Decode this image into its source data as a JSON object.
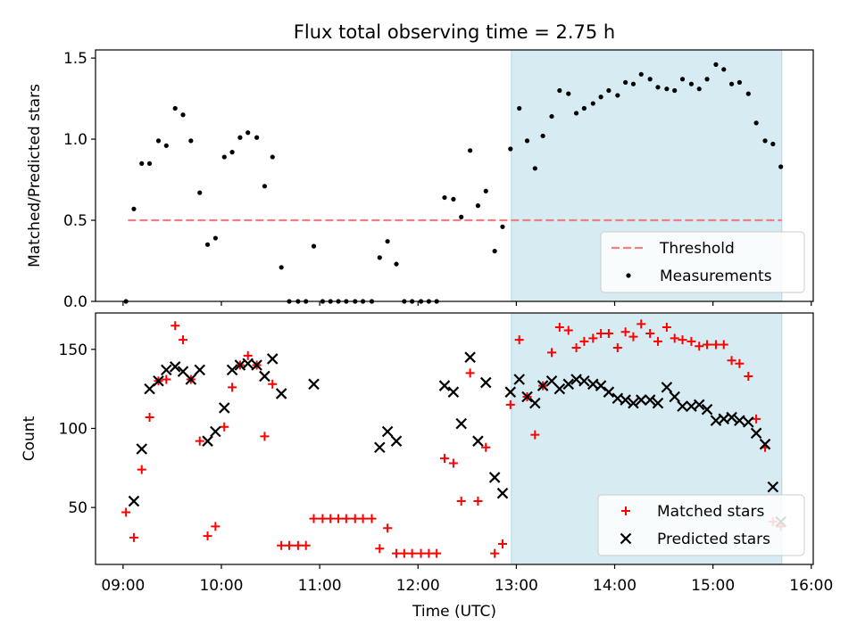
{
  "title": "Flux total observing time = 2.75 h",
  "colors": {
    "shade": "#add8e6",
    "threshold": "#f08080",
    "measurement": "#000000",
    "matched": "#ff0000",
    "predicted": "#000000"
  },
  "chart_data": [
    {
      "type": "scatter",
      "ylabel": "Matched/Predicted stars",
      "ylim": [
        0,
        1.55
      ],
      "xlim": [
        8.72,
        16.02
      ],
      "yticks": [
        {
          "v": 0,
          "label": "0.0"
        },
        {
          "v": 0.5,
          "label": "0.5"
        },
        {
          "v": 1.0,
          "label": "1.0"
        },
        {
          "v": 1.5,
          "label": "1.5"
        }
      ],
      "shaded_region": [
        12.95,
        15.7
      ],
      "threshold": {
        "value": 0.5,
        "x": [
          9.05,
          15.7
        ]
      },
      "legend": {
        "placement": "lower-right",
        "entries": [
          "Threshold",
          "Measurements"
        ]
      },
      "series": [
        {
          "name": "Measurements",
          "x": [
            9.03,
            9.11,
            9.19,
            9.27,
            9.36,
            9.44,
            9.53,
            9.61,
            9.69,
            9.78,
            9.86,
            9.94,
            10.03,
            10.11,
            10.19,
            10.27,
            10.36,
            10.44,
            10.52,
            10.61,
            10.69,
            10.78,
            10.86,
            10.94,
            11.03,
            11.11,
            11.19,
            11.27,
            11.36,
            11.44,
            11.53,
            11.61,
            11.69,
            11.78,
            11.86,
            11.94,
            12.03,
            12.11,
            12.19,
            12.27,
            12.36,
            12.44,
            12.53,
            12.61,
            12.69,
            12.78,
            12.86,
            12.94,
            13.03,
            13.11,
            13.19,
            13.27,
            13.36,
            13.44,
            13.53,
            13.61,
            13.69,
            13.78,
            13.86,
            13.94,
            14.03,
            14.11,
            14.19,
            14.27,
            14.36,
            14.44,
            14.53,
            14.61,
            14.69,
            14.78,
            14.86,
            14.94,
            15.03,
            15.11,
            15.19,
            15.27,
            15.36,
            15.44,
            15.53,
            15.61,
            15.69
          ],
          "y": [
            0.0,
            0.57,
            0.85,
            0.85,
            0.99,
            0.96,
            1.19,
            1.15,
            0.99,
            0.67,
            0.35,
            0.39,
            0.89,
            0.92,
            1.01,
            1.04,
            1.01,
            0.71,
            0.89,
            0.21,
            0.0,
            0.0,
            0.0,
            0.34,
            0.0,
            0.0,
            0.0,
            0.0,
            0.0,
            0.0,
            0.0,
            0.27,
            0.37,
            0.23,
            0.0,
            0.0,
            0.0,
            0.0,
            0.0,
            0.64,
            0.63,
            0.52,
            0.93,
            0.59,
            0.68,
            0.31,
            0.46,
            0.94,
            1.19,
            0.99,
            0.82,
            1.02,
            1.14,
            1.3,
            1.28,
            1.16,
            1.19,
            1.22,
            1.26,
            1.3,
            1.27,
            1.35,
            1.34,
            1.4,
            1.37,
            1.32,
            1.31,
            1.3,
            1.37,
            1.34,
            1.31,
            1.37,
            1.46,
            1.43,
            1.34,
            1.35,
            1.28,
            1.1,
            0.99,
            0.97,
            0.83
          ]
        }
      ]
    },
    {
      "type": "scatter",
      "xlabel": "Time (UTC)",
      "ylabel": "Count",
      "ylim": [
        14,
        173
      ],
      "xlim": [
        8.72,
        16.02
      ],
      "yticks": [
        {
          "v": 50,
          "label": "50"
        },
        {
          "v": 100,
          "label": "100"
        },
        {
          "v": 150,
          "label": "150"
        }
      ],
      "xticks": [
        {
          "v": 9,
          "label": "09:00"
        },
        {
          "v": 10,
          "label": "10:00"
        },
        {
          "v": 11,
          "label": "11:00"
        },
        {
          "v": 12,
          "label": "12:00"
        },
        {
          "v": 13,
          "label": "13:00"
        },
        {
          "v": 14,
          "label": "14:00"
        },
        {
          "v": 15,
          "label": "15:00"
        },
        {
          "v": 16,
          "label": "16:00"
        }
      ],
      "shaded_region": [
        12.95,
        15.7
      ],
      "legend": {
        "placement": "lower-right",
        "entries": [
          "Matched stars",
          "Predicted stars"
        ]
      },
      "series": [
        {
          "name": "Matched stars",
          "marker": "plus",
          "x": [
            9.03,
            9.11,
            9.19,
            9.27,
            9.36,
            9.44,
            9.53,
            9.61,
            9.69,
            9.78,
            9.86,
            9.94,
            10.03,
            10.11,
            10.19,
            10.27,
            10.36,
            10.44,
            10.52,
            10.61,
            10.69,
            10.78,
            10.86,
            10.94,
            11.03,
            11.11,
            11.19,
            11.27,
            11.36,
            11.44,
            11.53,
            11.61,
            11.69,
            11.78,
            11.86,
            11.94,
            12.03,
            12.11,
            12.19,
            12.27,
            12.36,
            12.44,
            12.53,
            12.61,
            12.69,
            12.78,
            12.86,
            12.94,
            13.03,
            13.11,
            13.19,
            13.27,
            13.36,
            13.44,
            13.53,
            13.61,
            13.69,
            13.78,
            13.86,
            13.94,
            14.03,
            14.11,
            14.19,
            14.27,
            14.36,
            14.44,
            14.53,
            14.61,
            14.69,
            14.78,
            14.86,
            14.94,
            15.03,
            15.11,
            15.19,
            15.27,
            15.36,
            15.44,
            15.53,
            15.61,
            15.69
          ],
          "y": [
            47,
            31,
            74,
            107,
            130,
            131,
            165,
            156,
            131,
            92,
            32,
            38,
            101,
            126,
            140,
            146,
            140,
            95,
            128,
            26,
            26,
            26,
            26,
            43,
            43,
            43,
            43,
            43,
            43,
            43,
            43,
            24,
            37,
            21,
            21,
            21,
            21,
            21,
            21,
            81,
            78,
            54,
            135,
            54,
            88,
            21,
            27,
            115,
            156,
            120,
            96,
            127,
            148,
            164,
            162,
            151,
            155,
            157,
            160,
            160,
            151,
            161,
            158,
            166,
            160,
            155,
            164,
            157,
            156,
            155,
            152,
            153,
            153,
            153,
            143,
            141,
            133,
            106,
            88,
            41,
            38
          ]
        },
        {
          "name": "Predicted stars",
          "marker": "x",
          "x": [
            9.11,
            9.19,
            9.27,
            9.36,
            9.44,
            9.53,
            9.61,
            9.69,
            9.78,
            9.86,
            9.94,
            10.03,
            10.11,
            10.19,
            10.27,
            10.36,
            10.44,
            10.52,
            10.61,
            10.94,
            11.61,
            11.69,
            11.78,
            12.27,
            12.36,
            12.44,
            12.53,
            12.61,
            12.69,
            12.78,
            12.86,
            12.94,
            13.03,
            13.11,
            13.19,
            13.27,
            13.36,
            13.44,
            13.53,
            13.61,
            13.69,
            13.78,
            13.86,
            13.94,
            14.03,
            14.11,
            14.19,
            14.27,
            14.36,
            14.44,
            14.53,
            14.61,
            14.69,
            14.78,
            14.86,
            14.94,
            15.03,
            15.11,
            15.19,
            15.27,
            15.36,
            15.44,
            15.53,
            15.61,
            15.69
          ],
          "y": [
            54,
            87,
            125,
            130,
            137,
            139,
            136,
            131,
            137,
            92,
            98,
            113,
            137,
            140,
            141,
            140,
            133,
            144,
            122,
            128,
            88,
            98,
            92,
            127,
            123,
            103,
            145,
            92,
            129,
            69,
            59,
            123,
            131,
            120,
            116,
            127,
            130,
            125,
            128,
            131,
            130,
            128,
            127,
            123,
            119,
            118,
            116,
            118,
            118,
            116,
            126,
            120,
            114,
            114,
            115,
            112,
            105,
            106,
            107,
            105,
            104,
            97,
            90,
            63,
            41
          ]
        }
      ]
    }
  ]
}
